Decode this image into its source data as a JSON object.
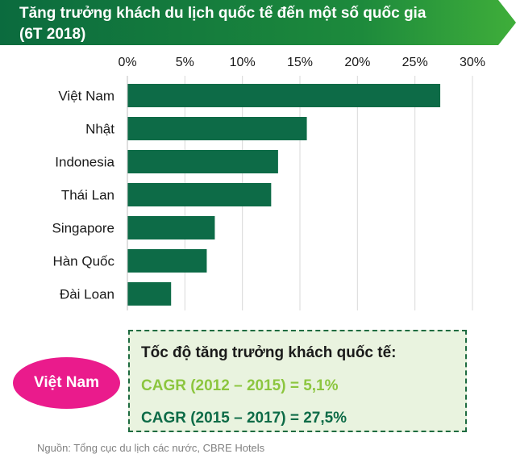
{
  "title": {
    "line1": "Tăng trưởng khách du lịch quốc tế đến một số quốc gia",
    "line2": "(6T 2018)"
  },
  "chart_data": {
    "type": "bar",
    "orientation": "horizontal",
    "categories": [
      "Việt Nam",
      "Nhật",
      "Indonesia",
      "Thái Lan",
      "Singapore",
      "Hàn Quốc",
      "Đài Loan"
    ],
    "values": [
      27.2,
      15.6,
      13.1,
      12.5,
      7.6,
      6.9,
      3.8
    ],
    "xlim": [
      0,
      30
    ],
    "xticks": [
      "0%",
      "5%",
      "10%",
      "15%",
      "20%",
      "25%",
      "30%"
    ],
    "tick_axis_position": "top",
    "grid": true,
    "bar_color": "#0d6b47"
  },
  "callout": {
    "heading": "Tốc độ tăng trưởng khách quốc tế:",
    "line1": "CAGR (2012 – 2015) = 5,1%",
    "line2": "CAGR (2015 – 2017) = 27,5%",
    "line1_color": "#8cc63f",
    "line2_color": "#0d6b47"
  },
  "badge": "Việt Nam",
  "source": "Nguồn: Tổng cục du lịch các nước, CBRE Hotels"
}
